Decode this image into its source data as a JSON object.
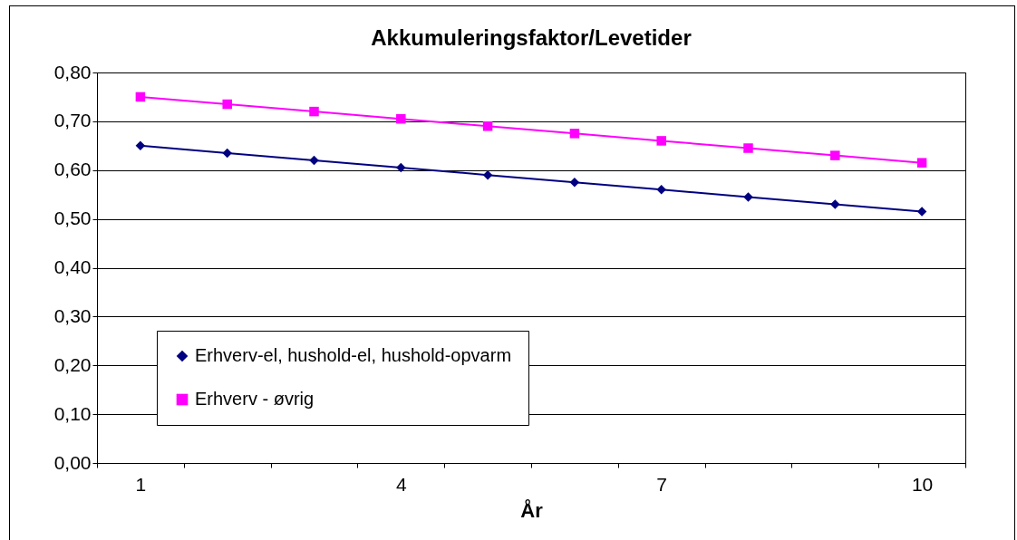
{
  "chart_data": {
    "type": "line",
    "title": "Akkumuleringsfaktor/Levetider",
    "xlabel": "År",
    "categories": [
      "1",
      null,
      null,
      "4",
      null,
      null,
      "7",
      null,
      null,
      "10"
    ],
    "series": [
      {
        "name": "Erhverv-el, hushold-el, hushold-opvarm",
        "color": "#000080",
        "marker": "diamond",
        "values": [
          0.65,
          0.635,
          0.62,
          0.605,
          0.59,
          0.575,
          0.56,
          0.545,
          0.53,
          0.515
        ]
      },
      {
        "name": "Erhverv - øvrig",
        "color": "#ff00ff",
        "marker": "square",
        "values": [
          0.75,
          0.735,
          0.72,
          0.705,
          0.69,
          0.675,
          0.66,
          0.645,
          0.63,
          0.615
        ]
      }
    ],
    "ylim": [
      0,
      0.8
    ],
    "yticks": [
      {
        "value": 0,
        "label": "0,00"
      },
      {
        "value": 0.1,
        "label": "0,10"
      },
      {
        "value": 0.2,
        "label": "0,20"
      },
      {
        "value": 0.3,
        "label": "0,30"
      },
      {
        "value": 0.4,
        "label": "0,40"
      },
      {
        "value": 0.5,
        "label": "0,50"
      },
      {
        "value": 0.6,
        "label": "0,60"
      },
      {
        "value": 0.7,
        "label": "0,70"
      },
      {
        "value": 0.8,
        "label": "0,80"
      }
    ],
    "grid": "y",
    "legend": "bottom left",
    "line_style": "solid"
  }
}
